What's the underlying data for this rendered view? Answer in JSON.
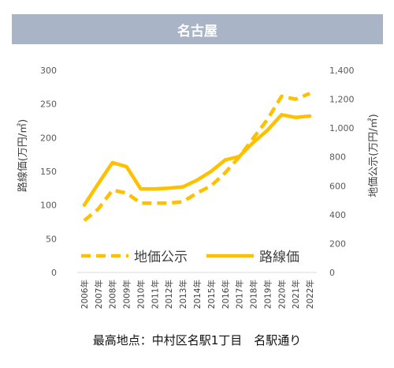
{
  "header": {
    "title": "名古屋"
  },
  "caption": "最高地点：中村区名駅1丁目　名駅通り",
  "chart_data": {
    "type": "line",
    "x": [
      "2006年",
      "2007年",
      "2008年",
      "2009年",
      "2010年",
      "2011年",
      "2012年",
      "2013年",
      "2014年",
      "2015年",
      "2016年",
      "2017年",
      "2018年",
      "2019年",
      "2020年",
      "2021年",
      "2022年"
    ],
    "y_left": {
      "label": "路線価(万円/㎡)",
      "ticks": [
        "300",
        "250",
        "200",
        "150",
        "100",
        "50",
        "0"
      ],
      "range": [
        0,
        300
      ]
    },
    "y_right": {
      "label": "地価公示(万円/㎡)",
      "ticks": [
        "1,400",
        "1,200",
        "1,000",
        "800",
        "600",
        "400",
        "200",
        "0"
      ],
      "range": [
        0,
        1400
      ]
    },
    "series": [
      {
        "name": "路線価",
        "axis": "left",
        "style": "solid",
        "color": "#FFC000",
        "values": [
          100,
          132,
          163,
          157,
          124,
          124,
          125,
          127,
          137,
          150,
          167,
          172,
          193,
          211,
          234,
          230,
          232
        ]
      },
      {
        "name": "地価公示",
        "axis": "right",
        "style": "dashed",
        "color": "#FFC000",
        "values": [
          360,
          440,
          570,
          550,
          480,
          480,
          480,
          490,
          550,
          600,
          690,
          800,
          930,
          1060,
          1220,
          1200,
          1240
        ]
      }
    ],
    "legend": {
      "position": "bottom-inside"
    },
    "grid": false
  }
}
